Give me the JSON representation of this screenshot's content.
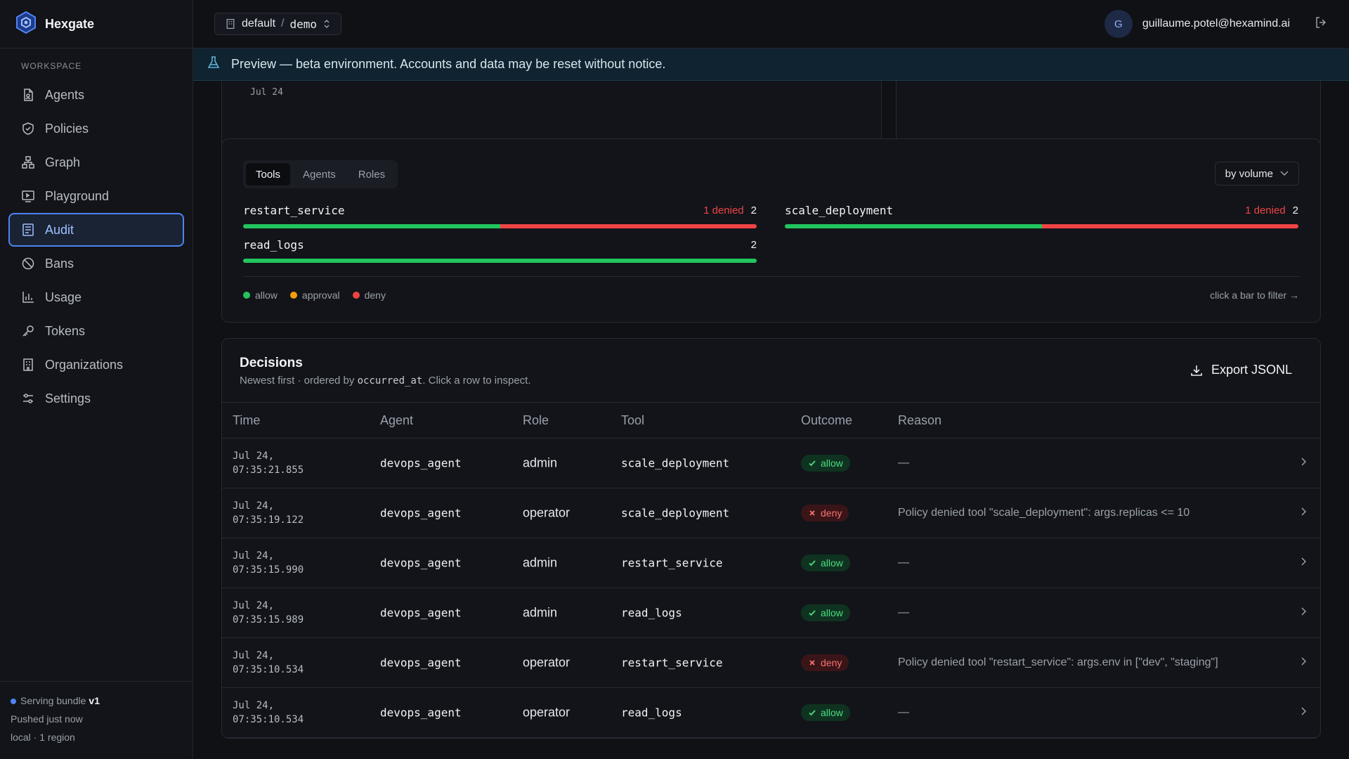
{
  "app": {
    "name": "Hexgate"
  },
  "sidebar": {
    "section_label": "WORKSPACE",
    "items": [
      {
        "label": "Agents",
        "icon": "file-icon"
      },
      {
        "label": "Policies",
        "icon": "shield-icon"
      },
      {
        "label": "Graph",
        "icon": "graph-icon"
      },
      {
        "label": "Playground",
        "icon": "playground-icon"
      },
      {
        "label": "Audit",
        "icon": "audit-icon",
        "active": true
      },
      {
        "label": "Bans",
        "icon": "ban-icon"
      },
      {
        "label": "Usage",
        "icon": "chart-icon"
      },
      {
        "label": "Tokens",
        "icon": "key-icon"
      },
      {
        "label": "Organizations",
        "icon": "building-icon"
      },
      {
        "label": "Settings",
        "icon": "sliders-icon"
      }
    ],
    "footer": {
      "bundle_label": "Serving bundle",
      "bundle_version": "v1",
      "pushed": "Pushed just now",
      "region": "local · 1 region"
    }
  },
  "topbar": {
    "org": "default",
    "separator": "/",
    "project": "demo",
    "avatar_initial": "G",
    "email": "guillaume.potel@hexamind.ai"
  },
  "banner": {
    "text": "Preview — beta environment. Accounts and data may be reset without notice."
  },
  "top_card": {
    "date_label": "Jul 24"
  },
  "tools_card": {
    "tabs": [
      {
        "label": "Tools",
        "active": true
      },
      {
        "label": "Agents"
      },
      {
        "label": "Roles"
      }
    ],
    "sort": "by volume",
    "bars": [
      {
        "name": "restart_service",
        "denied_label": "1 denied",
        "total": "2",
        "allow": 1,
        "approval": 0,
        "deny": 1
      },
      {
        "name": "scale_deployment",
        "denied_label": "1 denied",
        "total": "2",
        "allow": 1,
        "approval": 0,
        "deny": 1
      },
      {
        "name": "read_logs",
        "denied_label": "",
        "total": "2",
        "allow": 2,
        "approval": 0,
        "deny": 0
      }
    ],
    "legend": [
      {
        "label": "allow",
        "color": "#22c55e"
      },
      {
        "label": "approval",
        "color": "#f59e0b"
      },
      {
        "label": "deny",
        "color": "#ef4444"
      }
    ],
    "hint": "click a bar to filter →"
  },
  "decisions": {
    "title": "Decisions",
    "subtitle_pre": "Newest first · ordered by ",
    "subtitle_code": "occurred_at",
    "subtitle_post": ". Click a row to inspect.",
    "export_label": "Export JSONL",
    "columns": {
      "time": "Time",
      "agent": "Agent",
      "role": "Role",
      "tool": "Tool",
      "outcome": "Outcome",
      "reason": "Reason"
    },
    "rows": [
      {
        "date": "Jul 24,",
        "time": "07:35:21.855",
        "agent": "devops_agent",
        "role": "admin",
        "tool": "scale_deployment",
        "outcome": "allow",
        "reason": "—"
      },
      {
        "date": "Jul 24,",
        "time": "07:35:19.122",
        "agent": "devops_agent",
        "role": "operator",
        "tool": "scale_deployment",
        "outcome": "deny",
        "reason": "Policy denied tool \"scale_deployment\": args.replicas <= 10"
      },
      {
        "date": "Jul 24,",
        "time": "07:35:15.990",
        "agent": "devops_agent",
        "role": "admin",
        "tool": "restart_service",
        "outcome": "allow",
        "reason": "—"
      },
      {
        "date": "Jul 24,",
        "time": "07:35:15.989",
        "agent": "devops_agent",
        "role": "admin",
        "tool": "read_logs",
        "outcome": "allow",
        "reason": "—"
      },
      {
        "date": "Jul 24,",
        "time": "07:35:10.534",
        "agent": "devops_agent",
        "role": "operator",
        "tool": "restart_service",
        "outcome": "deny",
        "reason": "Policy denied tool \"restart_service\": args.env in [\"dev\", \"staging\"]"
      },
      {
        "date": "Jul 24,",
        "time": "07:35:10.534",
        "agent": "devops_agent",
        "role": "operator",
        "tool": "read_logs",
        "outcome": "allow",
        "reason": "—"
      }
    ]
  }
}
